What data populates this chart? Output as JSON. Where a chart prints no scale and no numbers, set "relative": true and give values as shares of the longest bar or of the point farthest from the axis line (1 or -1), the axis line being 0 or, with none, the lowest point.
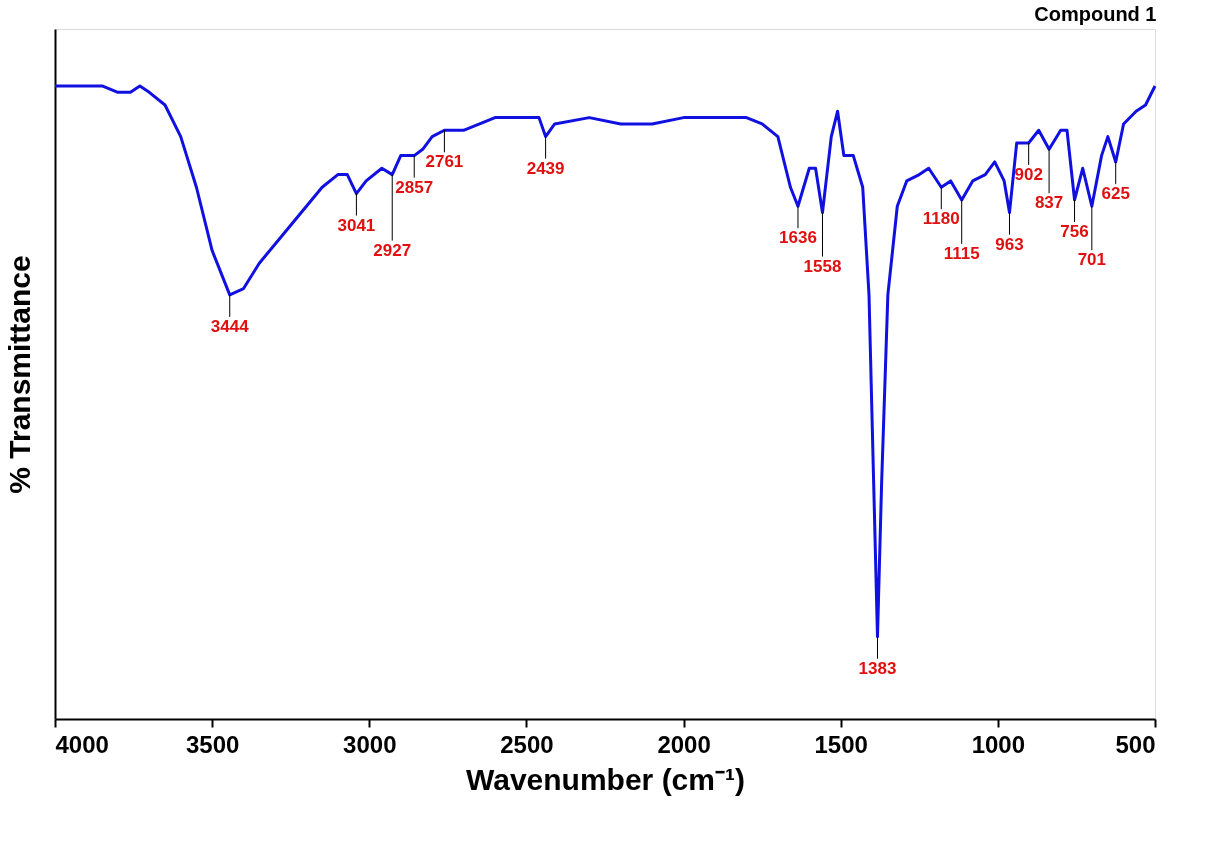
{
  "chart_data": {
    "type": "line",
    "title": "Compound 1",
    "xlabel": "Wavenumber (cm⁻¹)",
    "ylabel": "% Transmittance",
    "relative": true,
    "xlim": [
      4000,
      500
    ],
    "xticks": [
      4000,
      3500,
      3000,
      2500,
      2000,
      1500,
      1000,
      500
    ],
    "grid": false,
    "marker": "none",
    "line_style": "solid",
    "series": [
      {
        "color": "#1010e0",
        "x": [
          4000,
          3900,
          3850,
          3800,
          3760,
          3730,
          3700,
          3650,
          3600,
          3550,
          3500,
          3444,
          3400,
          3350,
          3300,
          3250,
          3200,
          3150,
          3100,
          3070,
          3041,
          3010,
          2960,
          2927,
          2900,
          2857,
          2830,
          2800,
          2761,
          2700,
          2600,
          2500,
          2460,
          2439,
          2410,
          2300,
          2200,
          2100,
          2000,
          1900,
          1850,
          1800,
          1750,
          1700,
          1660,
          1636,
          1600,
          1580,
          1558,
          1530,
          1510,
          1490,
          1460,
          1430,
          1410,
          1395,
          1383,
          1370,
          1350,
          1320,
          1290,
          1250,
          1220,
          1180,
          1150,
          1115,
          1080,
          1040,
          1010,
          980,
          963,
          940,
          902,
          870,
          837,
          800,
          780,
          756,
          730,
          701,
          670,
          650,
          625,
          600,
          560,
          530,
          500
        ],
        "values": [
          1.0,
          1.0,
          1.0,
          0.99,
          0.99,
          1.0,
          0.99,
          0.97,
          0.92,
          0.84,
          0.74,
          0.67,
          0.68,
          0.72,
          0.75,
          0.78,
          0.81,
          0.84,
          0.86,
          0.86,
          0.83,
          0.85,
          0.87,
          0.86,
          0.89,
          0.89,
          0.9,
          0.92,
          0.93,
          0.93,
          0.95,
          0.95,
          0.95,
          0.92,
          0.94,
          0.95,
          0.94,
          0.94,
          0.95,
          0.95,
          0.95,
          0.95,
          0.94,
          0.92,
          0.84,
          0.81,
          0.87,
          0.87,
          0.8,
          0.92,
          0.96,
          0.89,
          0.89,
          0.84,
          0.67,
          0.37,
          0.13,
          0.37,
          0.67,
          0.81,
          0.85,
          0.86,
          0.87,
          0.84,
          0.85,
          0.82,
          0.85,
          0.86,
          0.88,
          0.85,
          0.8,
          0.91,
          0.91,
          0.93,
          0.9,
          0.93,
          0.93,
          0.82,
          0.87,
          0.81,
          0.89,
          0.92,
          0.88,
          0.94,
          0.96,
          0.97,
          1.0
        ]
      }
    ],
    "annotations": [
      {
        "text": "3444",
        "x": 3444,
        "y": 0.67
      },
      {
        "text": "3041",
        "x": 3041,
        "y": 0.83
      },
      {
        "text": "2927",
        "x": 2927,
        "y": 0.86
      },
      {
        "text": "2857",
        "x": 2857,
        "y": 0.89
      },
      {
        "text": "2761",
        "x": 2761,
        "y": 0.93
      },
      {
        "text": "2439",
        "x": 2439,
        "y": 0.92
      },
      {
        "text": "1636",
        "x": 1636,
        "y": 0.81
      },
      {
        "text": "1558",
        "x": 1558,
        "y": 0.8
      },
      {
        "text": "1383",
        "x": 1383,
        "y": 0.13
      },
      {
        "text": "1180",
        "x": 1180,
        "y": 0.84
      },
      {
        "text": "1115",
        "x": 1115,
        "y": 0.82
      },
      {
        "text": "963",
        "x": 963,
        "y": 0.8
      },
      {
        "text": "902",
        "x": 902,
        "y": 0.91
      },
      {
        "text": "837",
        "x": 837,
        "y": 0.9
      },
      {
        "text": "756",
        "x": 756,
        "y": 0.82
      },
      {
        "text": "701",
        "x": 701,
        "y": 0.81
      },
      {
        "text": "625",
        "x": 625,
        "y": 0.88
      }
    ]
  }
}
